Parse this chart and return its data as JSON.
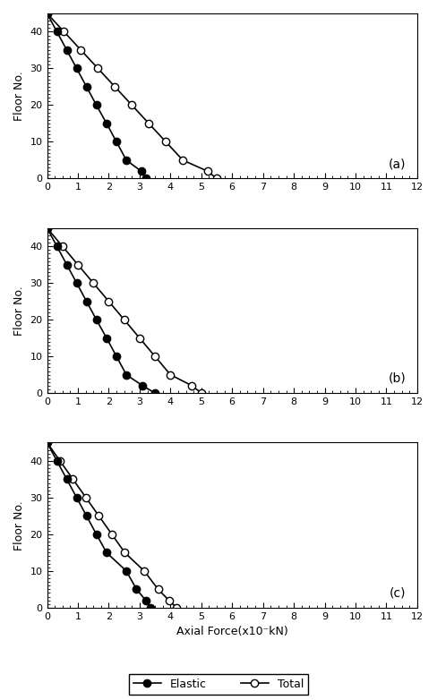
{
  "subplots": [
    {
      "label": "(a)",
      "elastic_floors": [
        45,
        40,
        35,
        30,
        25,
        20,
        15,
        10,
        5,
        2,
        0
      ],
      "elastic_force": [
        0,
        0.32,
        0.64,
        0.96,
        1.28,
        1.6,
        1.93,
        2.25,
        2.57,
        3.05,
        3.2
      ],
      "total_floors": [
        45,
        40,
        35,
        30,
        25,
        20,
        15,
        10,
        5,
        2,
        0
      ],
      "total_force": [
        0,
        0.55,
        1.1,
        1.65,
        2.2,
        2.75,
        3.3,
        3.85,
        4.4,
        5.2,
        5.5
      ]
    },
    {
      "label": "(b)",
      "elastic_floors": [
        45,
        40,
        35,
        30,
        25,
        20,
        15,
        10,
        5,
        2,
        0
      ],
      "elastic_force": [
        0,
        0.32,
        0.64,
        0.96,
        1.28,
        1.6,
        1.93,
        2.25,
        2.57,
        3.1,
        3.5
      ],
      "total_floors": [
        45,
        40,
        35,
        30,
        25,
        20,
        15,
        10,
        5,
        2,
        0
      ],
      "total_force": [
        0,
        0.5,
        1.0,
        1.5,
        2.0,
        2.5,
        3.0,
        3.5,
        4.0,
        4.7,
        5.0
      ]
    },
    {
      "label": "(c)",
      "elastic_floors": [
        45,
        40,
        35,
        30,
        25,
        20,
        15,
        10,
        5,
        2,
        0
      ],
      "elastic_force": [
        0,
        0.32,
        0.64,
        0.96,
        1.28,
        1.6,
        1.93,
        2.57,
        2.9,
        3.2,
        3.35
      ],
      "total_floors": [
        45,
        40,
        35,
        30,
        25,
        20,
        15,
        10,
        5,
        2,
        0
      ],
      "total_force": [
        0,
        0.42,
        0.84,
        1.26,
        1.68,
        2.1,
        2.52,
        3.15,
        3.6,
        3.95,
        4.2
      ]
    }
  ],
  "xlim": [
    0,
    12
  ],
  "ylim": [
    0,
    45
  ],
  "xlabel": "Axial Force(x10⁻kN)",
  "ylabel": "Floor No.",
  "xticks": [
    0,
    1,
    2,
    3,
    4,
    5,
    6,
    7,
    8,
    9,
    10,
    11,
    12
  ],
  "yticks": [
    0,
    10,
    20,
    30,
    40
  ],
  "legend_elastic": "Elastic",
  "legend_total": "Total",
  "marker_size": 6,
  "linewidth": 1.2,
  "label_fontsize": 9,
  "tick_fontsize": 8,
  "legend_fontsize": 9
}
